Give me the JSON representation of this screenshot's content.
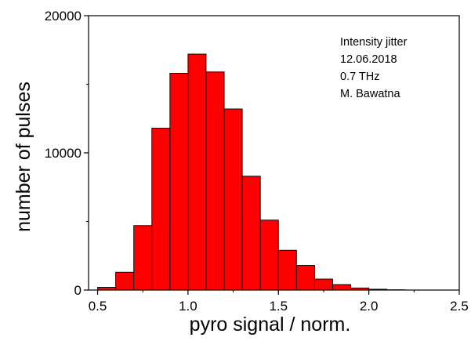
{
  "chart_data": {
    "type": "bar",
    "title": "",
    "xlabel": "pyro signal / norm.",
    "ylabel": "number of pulses",
    "xlim": [
      0.45,
      2.5
    ],
    "ylim": [
      0,
      20000
    ],
    "x_ticks": [
      "0.5",
      "1.0",
      "1.5",
      "2.0",
      "2.5"
    ],
    "y_ticks": [
      "0",
      "10000",
      "20000"
    ],
    "bin_width": 0.1,
    "bins": [
      {
        "x0": 0.5,
        "x1": 0.6,
        "value": 200
      },
      {
        "x0": 0.6,
        "x1": 0.7,
        "value": 1300
      },
      {
        "x0": 0.7,
        "x1": 0.8,
        "value": 4700
      },
      {
        "x0": 0.8,
        "x1": 0.9,
        "value": 11800
      },
      {
        "x0": 0.9,
        "x1": 1.0,
        "value": 15800
      },
      {
        "x0": 1.0,
        "x1": 1.1,
        "value": 17200
      },
      {
        "x0": 1.1,
        "x1": 1.2,
        "value": 15900
      },
      {
        "x0": 1.2,
        "x1": 1.3,
        "value": 13200
      },
      {
        "x0": 1.3,
        "x1": 1.4,
        "value": 8300
      },
      {
        "x0": 1.4,
        "x1": 1.5,
        "value": 5100
      },
      {
        "x0": 1.5,
        "x1": 1.6,
        "value": 2900
      },
      {
        "x0": 1.6,
        "x1": 1.7,
        "value": 1800
      },
      {
        "x0": 1.7,
        "x1": 1.8,
        "value": 800
      },
      {
        "x0": 1.8,
        "x1": 1.9,
        "value": 400
      },
      {
        "x0": 1.9,
        "x1": 2.0,
        "value": 150
      },
      {
        "x0": 2.0,
        "x1": 2.1,
        "value": 60
      },
      {
        "x0": 2.1,
        "x1": 2.2,
        "value": 20
      }
    ],
    "annotation": [
      "Intensity jitter",
      "12.06.2018",
      "0.7 THz",
      "M. Bawatna"
    ],
    "bar_color": "#ff0000",
    "bar_edge_color": "#000000",
    "grid": false,
    "legend": "none"
  }
}
